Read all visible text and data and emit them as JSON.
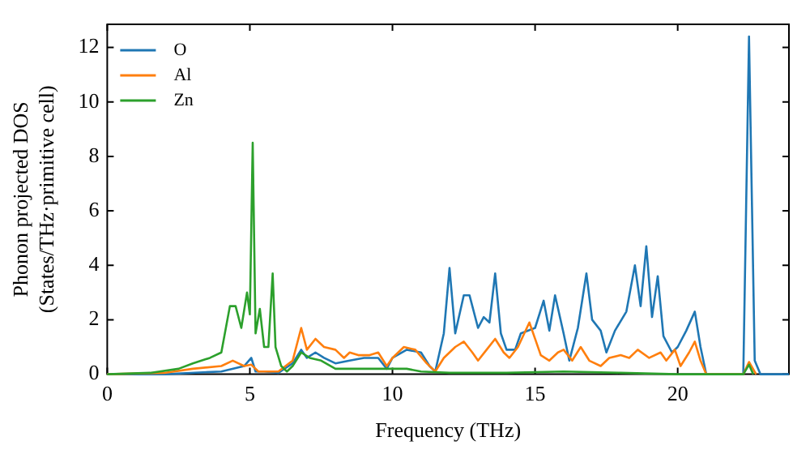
{
  "chart_data": {
    "type": "line",
    "xlabel": "Frequency (THz)",
    "ylabel": "Phonon projected DOS\n(States/THz·primitive cell)",
    "xlim": [
      0,
      23.9
    ],
    "ylim": [
      0,
      12.85
    ],
    "xticks": [
      0,
      5,
      10,
      15,
      20
    ],
    "yticks": [
      0,
      2,
      4,
      6,
      8,
      10,
      12
    ],
    "grid": false,
    "legend": "top left",
    "marker": "none",
    "line_style": "solid",
    "series": [
      {
        "name": "O",
        "color": "#1f77b4",
        "x": [
          0,
          2,
          4,
          4.8,
          5.05,
          5.2,
          5.5,
          6,
          6.5,
          6.8,
          7,
          7.3,
          7.6,
          8,
          8.5,
          9,
          9.5,
          9.8,
          10,
          10.5,
          11,
          11.3,
          11.5,
          11.8,
          12,
          12.2,
          12.5,
          12.7,
          13,
          13.2,
          13.4,
          13.6,
          13.8,
          14,
          14.3,
          14.5,
          15,
          15.3,
          15.5,
          15.7,
          16,
          16.2,
          16.5,
          16.8,
          17,
          17.3,
          17.5,
          17.8,
          18.2,
          18.5,
          18.7,
          18.9,
          19.1,
          19.3,
          19.5,
          19.8,
          20,
          20.3,
          20.6,
          20.8,
          21,
          22,
          22.3,
          22.5,
          22.7,
          22.9,
          23.9
        ],
        "values": [
          0,
          0,
          0.1,
          0.3,
          0.6,
          0.1,
          0.1,
          0.05,
          0.4,
          0.9,
          0.6,
          0.8,
          0.6,
          0.4,
          0.5,
          0.6,
          0.6,
          0.2,
          0.6,
          0.9,
          0.8,
          0.3,
          0.1,
          1.5,
          3.9,
          1.5,
          2.9,
          2.9,
          1.7,
          2.1,
          1.9,
          3.7,
          1.5,
          0.9,
          0.9,
          1.5,
          1.7,
          2.7,
          1.6,
          2.9,
          1.5,
          0.5,
          1.7,
          3.7,
          2,
          1.6,
          0.8,
          1.6,
          2.3,
          4,
          2.5,
          4.7,
          2.1,
          3.6,
          1.4,
          0.8,
          1,
          1.6,
          2.3,
          1,
          0,
          0,
          0,
          12.4,
          0.5,
          0,
          0
        ]
      },
      {
        "name": "Al",
        "color": "#ff7f0e",
        "x": [
          0,
          2,
          3,
          4,
          4.4,
          4.8,
          5.05,
          5.3,
          5.7,
          6,
          6.5,
          6.8,
          7,
          7.3,
          7.6,
          8,
          8.3,
          8.5,
          8.8,
          9.2,
          9.5,
          9.8,
          10,
          10.4,
          10.8,
          11.2,
          11.5,
          11.8,
          12.2,
          12.5,
          12.8,
          13,
          13.3,
          13.6,
          13.9,
          14.1,
          14.4,
          14.8,
          15,
          15.2,
          15.5,
          15.8,
          16,
          16.3,
          16.6,
          16.9,
          17.3,
          17.6,
          18,
          18.3,
          18.6,
          19,
          19.4,
          19.6,
          19.9,
          20.1,
          20.4,
          20.6,
          20.8,
          21,
          22.3,
          22.5,
          22.75
        ],
        "values": [
          0,
          0.05,
          0.2,
          0.3,
          0.5,
          0.3,
          0.35,
          0.1,
          0.1,
          0.1,
          0.5,
          1.7,
          0.9,
          1.3,
          1,
          0.9,
          0.6,
          0.8,
          0.7,
          0.7,
          0.8,
          0.3,
          0.6,
          1,
          0.9,
          0.4,
          0.1,
          0.6,
          1,
          1.2,
          0.8,
          0.5,
          0.9,
          1.3,
          0.8,
          0.6,
          1,
          1.9,
          1.3,
          0.7,
          0.5,
          0.8,
          0.9,
          0.5,
          1,
          0.5,
          0.3,
          0.6,
          0.7,
          0.6,
          0.9,
          0.6,
          0.8,
          0.5,
          0.9,
          0.3,
          0.8,
          1.2,
          0.5,
          0,
          0,
          0.45,
          0
        ]
      },
      {
        "name": "Zn",
        "color": "#2ca02c",
        "x": [
          0,
          1.5,
          2.5,
          3,
          3.6,
          4,
          4.3,
          4.5,
          4.7,
          4.9,
          5,
          5.1,
          5.2,
          5.35,
          5.5,
          5.65,
          5.8,
          5.9,
          6.1,
          6.3,
          6.5,
          6.8,
          7.1,
          7.5,
          8,
          9,
          10,
          10.5,
          11,
          12,
          14,
          16,
          18,
          20,
          22.3,
          22.5,
          22.65
        ],
        "values": [
          0,
          0.05,
          0.2,
          0.4,
          0.6,
          0.8,
          2.5,
          2.5,
          1.7,
          3,
          2.2,
          8.5,
          1.5,
          2.4,
          1,
          1,
          3.7,
          1,
          0.3,
          0.1,
          0.3,
          0.8,
          0.6,
          0.5,
          0.2,
          0.2,
          0.2,
          0.2,
          0.1,
          0.05,
          0.05,
          0.1,
          0.05,
          0,
          0,
          0.35,
          0
        ]
      }
    ]
  }
}
